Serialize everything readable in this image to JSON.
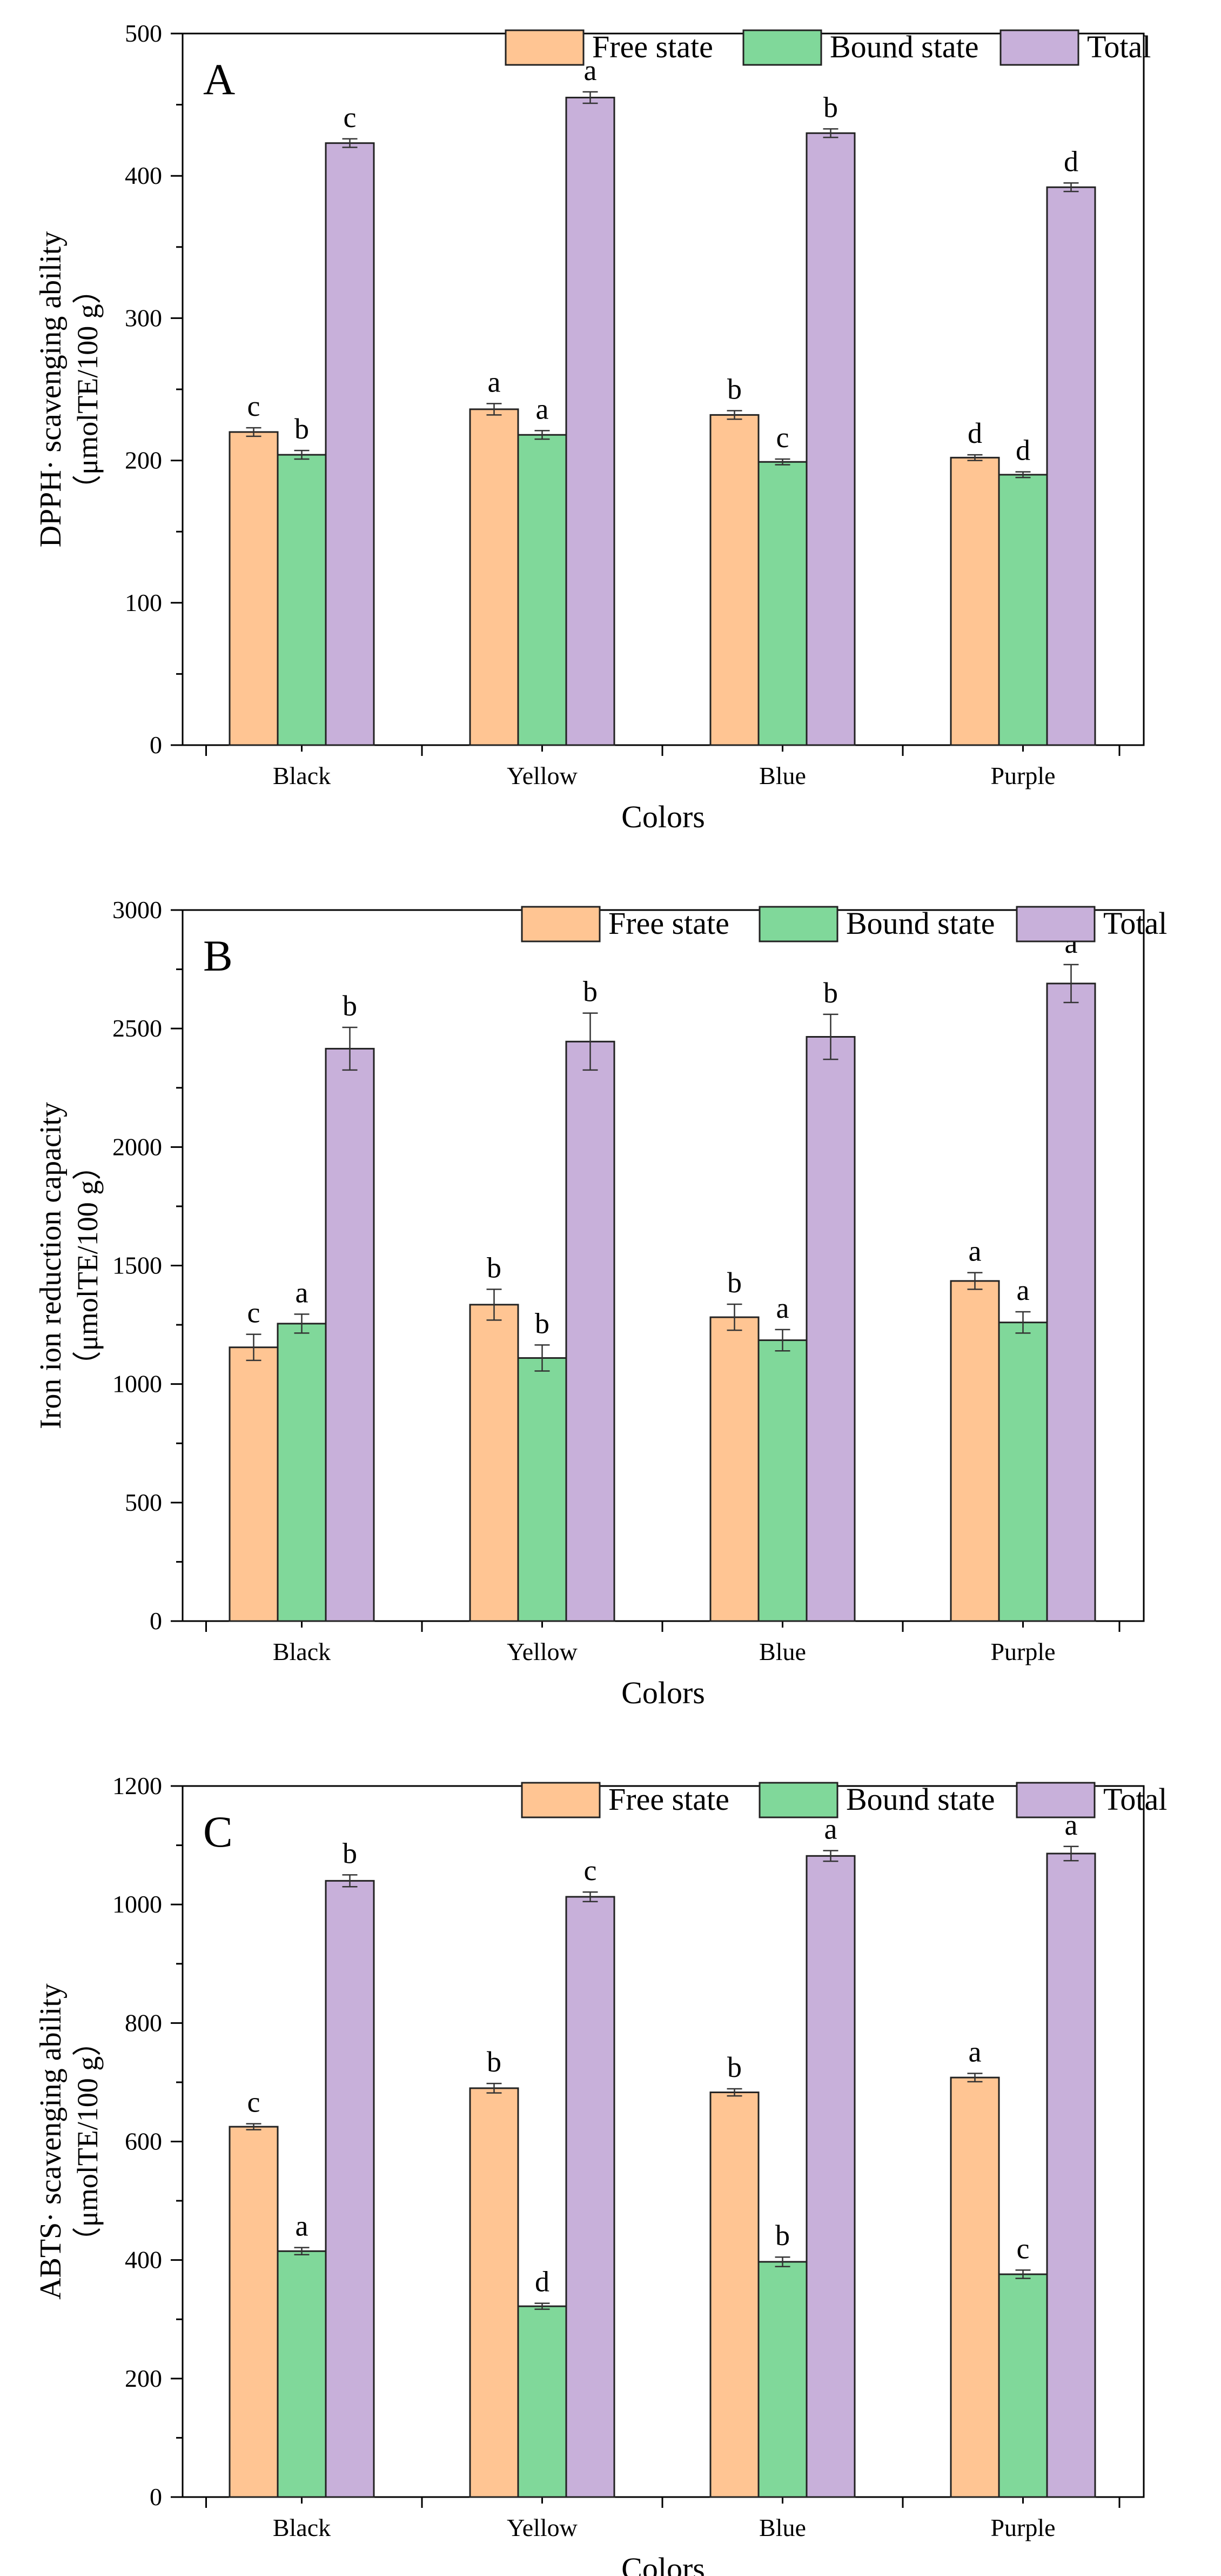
{
  "figure": {
    "colors": {
      "free": "#FFC593",
      "bound": "#80D89A",
      "total": "#C8B0DA",
      "stroke": "#222222"
    }
  },
  "chart_data": [
    {
      "type": "bar",
      "panel_label": "A",
      "categories": [
        "Black",
        "Yellow",
        "Blue",
        "Purple"
      ],
      "series": [
        {
          "name": "Free state",
          "values": [
            220,
            236,
            232,
            202
          ],
          "errors": [
            3,
            4,
            3,
            2
          ],
          "letters": [
            "c",
            "a",
            "b",
            "d"
          ]
        },
        {
          "name": "Bound state",
          "values": [
            204,
            218,
            199,
            190
          ],
          "errors": [
            3,
            3,
            2,
            2
          ],
          "letters": [
            "b",
            "a",
            "c",
            "d"
          ]
        },
        {
          "name": "Total",
          "values": [
            423,
            455,
            430,
            392
          ],
          "errors": [
            3,
            4,
            3,
            3
          ],
          "letters": [
            "c",
            "a",
            "b",
            "d"
          ]
        }
      ],
      "xlabel": "Colors",
      "ylabel_line1": "DPPH· scavenging ability",
      "ylabel_line2": "（μmolTE/100 g）",
      "ylim": [
        0,
        500
      ],
      "yticks": [
        0,
        100,
        200,
        300,
        400,
        500
      ],
      "legend_position": "top-right"
    },
    {
      "type": "bar",
      "panel_label": "B",
      "categories": [
        "Black",
        "Yellow",
        "Blue",
        "Purple"
      ],
      "series": [
        {
          "name": "Free state",
          "values": [
            1155,
            1335,
            1282,
            1435
          ],
          "errors": [
            55,
            65,
            55,
            35
          ],
          "letters": [
            "c",
            "b",
            "b",
            "a"
          ]
        },
        {
          "name": "Bound state",
          "values": [
            1255,
            1110,
            1185,
            1260
          ],
          "errors": [
            40,
            55,
            45,
            45
          ],
          "letters": [
            "a",
            "b",
            "a",
            "a"
          ]
        },
        {
          "name": "Total",
          "values": [
            2415,
            2445,
            2465,
            2690
          ],
          "errors": [
            90,
            120,
            95,
            80
          ],
          "letters": [
            "b",
            "b",
            "b",
            "a"
          ]
        }
      ],
      "xlabel": "Colors",
      "ylabel_line1": "Iron ion reduction capacity",
      "ylabel_line2": "（μmolTE/100 g）",
      "ylim": [
        0,
        3000
      ],
      "yticks": [
        0,
        500,
        1000,
        1500,
        2000,
        2500,
        3000
      ],
      "legend_position": "top-right"
    },
    {
      "type": "bar",
      "panel_label": "C",
      "categories": [
        "Black",
        "Yellow",
        "Blue",
        "Purple"
      ],
      "series": [
        {
          "name": "Free state",
          "values": [
            625,
            690,
            683,
            708
          ],
          "errors": [
            5,
            8,
            6,
            7
          ],
          "letters": [
            "c",
            "b",
            "b",
            "a"
          ]
        },
        {
          "name": "Bound state",
          "values": [
            415,
            322,
            397,
            376
          ],
          "errors": [
            6,
            5,
            8,
            7
          ],
          "letters": [
            "a",
            "d",
            "b",
            "c"
          ]
        },
        {
          "name": "Total",
          "values": [
            1040,
            1013,
            1082,
            1086
          ],
          "errors": [
            10,
            8,
            9,
            12
          ],
          "letters": [
            "b",
            "c",
            "a",
            "a"
          ]
        }
      ],
      "xlabel": "Colors",
      "ylabel_line1": "ABTS· scavenging ability",
      "ylabel_line2": "（μmolTE/100 g）",
      "ylim": [
        0,
        1200
      ],
      "yticks": [
        0,
        200,
        400,
        600,
        800,
        1000,
        1200
      ],
      "legend_position": "top-right"
    }
  ]
}
